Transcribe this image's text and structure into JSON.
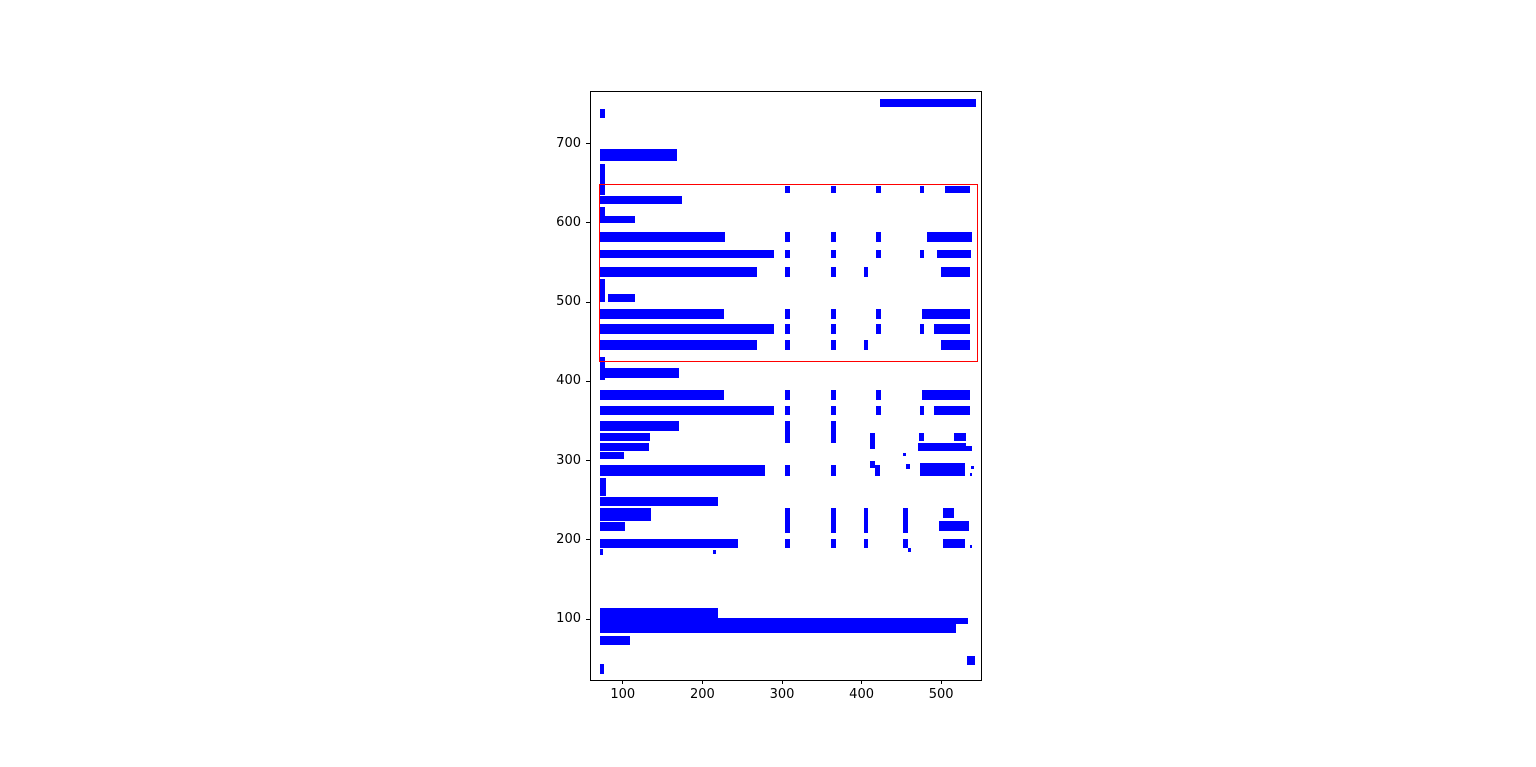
{
  "figure": {
    "background_color": "#ffffff",
    "spine_color": "#000000",
    "tick_color": "#000000"
  },
  "chart_data": {
    "type": "rectangles",
    "title": "",
    "xlabel": "",
    "ylabel": "",
    "grid": false,
    "legend": null,
    "xlim": [
      60,
      550
    ],
    "ylim": [
      23,
      765
    ],
    "x_ticks": [
      100,
      200,
      300,
      400,
      500
    ],
    "y_ticks": [
      100,
      200,
      300,
      400,
      500,
      600,
      700
    ],
    "x_tick_labels": [
      "100",
      "200",
      "300",
      "400",
      "500"
    ],
    "y_tick_labels": [
      "100",
      "200",
      "300",
      "400",
      "500",
      "600",
      "700"
    ],
    "box_color": "#0000ff",
    "highlight_color": "#ff0000",
    "highlight_rect": {
      "x": 70.0,
      "y": 423.9,
      "width": 475.9,
      "height": 224.9
    },
    "boxes": [
      [
        422.5,
        745.7,
        121.3,
        10.0
      ],
      [
        71.3,
        732.7,
        6.2,
        11.3
      ],
      [
        71.3,
        678.0,
        96.2,
        15.6
      ],
      [
        71.3,
        650.8,
        6.2,
        23.9
      ],
      [
        71.3,
        635.0,
        5.7,
        17.8
      ],
      [
        304.1,
        637.0,
        6.3,
        9.3
      ],
      [
        361.6,
        637.0,
        6.3,
        9.3
      ],
      [
        417.9,
        637.0,
        6.2,
        9.3
      ],
      [
        472.9,
        637.0,
        5.5,
        9.3
      ],
      [
        504.1,
        637.0,
        32.5,
        9.3
      ],
      [
        71.3,
        623.6,
        102.8,
        10.1
      ],
      [
        71.3,
        599.3,
        5.7,
        21.0
      ],
      [
        76.6,
        599.3,
        38.4,
        9.2
      ],
      [
        71.3,
        576.1,
        157.1,
        12.6
      ],
      [
        304.1,
        576.1,
        6.3,
        12.6
      ],
      [
        361.6,
        576.1,
        6.3,
        12.6
      ],
      [
        417.9,
        576.1,
        6.2,
        12.6
      ],
      [
        481.6,
        576.1,
        57.2,
        12.6
      ],
      [
        71.3,
        555.2,
        218.7,
        10.5
      ],
      [
        304.1,
        555.2,
        6.3,
        10.5
      ],
      [
        361.6,
        555.2,
        6.3,
        10.5
      ],
      [
        417.9,
        555.2,
        6.2,
        10.5
      ],
      [
        472.9,
        555.2,
        5.5,
        10.5
      ],
      [
        495.0,
        555.2,
        42.5,
        10.5
      ],
      [
        71.3,
        531.8,
        197.8,
        12.5
      ],
      [
        304.1,
        531.8,
        6.3,
        12.5
      ],
      [
        361.6,
        531.8,
        6.3,
        12.5
      ],
      [
        402.5,
        531.8,
        5.9,
        12.5
      ],
      [
        499.1,
        531.8,
        37.5,
        12.5
      ],
      [
        71.3,
        500.2,
        5.7,
        29.4
      ],
      [
        80.9,
        500.2,
        34.1,
        10.5
      ],
      [
        71.3,
        479.2,
        156.2,
        12.6
      ],
      [
        304.1,
        479.2,
        6.3,
        12.6
      ],
      [
        361.6,
        479.2,
        6.3,
        12.6
      ],
      [
        417.9,
        479.2,
        6.2,
        12.6
      ],
      [
        476.3,
        479.2,
        59.6,
        12.6
      ],
      [
        71.3,
        460.3,
        218.7,
        12.6
      ],
      [
        304.1,
        460.3,
        6.3,
        12.6
      ],
      [
        361.6,
        460.3,
        6.3,
        12.6
      ],
      [
        417.9,
        460.3,
        6.2,
        12.6
      ],
      [
        472.9,
        460.3,
        5.5,
        12.6
      ],
      [
        490.9,
        460.3,
        45.0,
        12.6
      ],
      [
        71.3,
        439.4,
        197.8,
        12.6
      ],
      [
        304.1,
        439.4,
        6.3,
        12.6
      ],
      [
        361.6,
        439.4,
        6.3,
        12.6
      ],
      [
        402.5,
        439.4,
        5.9,
        12.6
      ],
      [
        499.1,
        439.4,
        37.5,
        12.6
      ],
      [
        71.3,
        402.0,
        5.7,
        29.0
      ],
      [
        71.3,
        404.2,
        99.6,
        12.6
      ],
      [
        71.3,
        376.9,
        156.2,
        12.6
      ],
      [
        304.1,
        376.9,
        6.3,
        12.6
      ],
      [
        361.6,
        376.9,
        6.3,
        12.6
      ],
      [
        417.9,
        376.9,
        6.2,
        12.6
      ],
      [
        476.3,
        376.9,
        59.6,
        12.6
      ],
      [
        71.3,
        356.8,
        218.7,
        11.7
      ],
      [
        304.1,
        356.8,
        6.3,
        11.7
      ],
      [
        361.6,
        356.8,
        6.3,
        11.7
      ],
      [
        417.9,
        356.8,
        6.2,
        11.7
      ],
      [
        472.9,
        356.8,
        5.5,
        11.7
      ],
      [
        490.9,
        356.8,
        45.0,
        11.7
      ],
      [
        71.3,
        337.0,
        99.6,
        12.6
      ],
      [
        304.1,
        322.5,
        6.3,
        27.1
      ],
      [
        361.6,
        322.5,
        6.3,
        27.1
      ],
      [
        410.0,
        314.0,
        6.3,
        21.0
      ],
      [
        71.3,
        324.4,
        63.3,
        10.6
      ],
      [
        472.5,
        324.4,
        6.3,
        10.6
      ],
      [
        516.3,
        324.4,
        14.6,
        10.6
      ],
      [
        71.3,
        311.8,
        61.2,
        10.6
      ],
      [
        470.4,
        311.8,
        60.5,
        10.6
      ],
      [
        530.9,
        311.8,
        8.2,
        6.5
      ],
      [
        71.3,
        301.4,
        30.0,
        9.2
      ],
      [
        410.0,
        291.0,
        6.3,
        8.3
      ],
      [
        451.6,
        305.5,
        4.4,
        4.2
      ],
      [
        456.0,
        288.8,
        5.0,
        7.0
      ],
      [
        71.3,
        280.0,
        207.1,
        14.7
      ],
      [
        304.1,
        280.0,
        6.3,
        14.7
      ],
      [
        361.6,
        280.0,
        6.3,
        14.7
      ],
      [
        416.6,
        280.0,
        6.3,
        14.7
      ],
      [
        473.0,
        280.0,
        57.6,
        17.0
      ],
      [
        537.1,
        288.8,
        4.2,
        4.1
      ],
      [
        535.9,
        280.0,
        2.9,
        4.1
      ],
      [
        71.3,
        254.8,
        7.5,
        23.0
      ],
      [
        71.3,
        242.2,
        148.7,
        11.4
      ],
      [
        71.3,
        223.3,
        63.7,
        16.8
      ],
      [
        304.1,
        208.6,
        6.3,
        31.5
      ],
      [
        361.6,
        208.6,
        6.3,
        31.5
      ],
      [
        402.5,
        208.6,
        5.9,
        31.5
      ],
      [
        452.5,
        208.6,
        6.3,
        31.5
      ],
      [
        502.5,
        227.5,
        13.4,
        12.6
      ],
      [
        497.1,
        210.7,
        37.5,
        12.6
      ],
      [
        71.3,
        210.7,
        31.2,
        11.4
      ],
      [
        71.3,
        189.0,
        172.8,
        12.1
      ],
      [
        304.1,
        189.0,
        6.3,
        12.1
      ],
      [
        361.6,
        189.0,
        6.3,
        12.1
      ],
      [
        402.5,
        189.0,
        5.9,
        12.1
      ],
      [
        452.5,
        189.0,
        6.3,
        12.1
      ],
      [
        458.8,
        185.0,
        3.7,
        4.2
      ],
      [
        502.5,
        189.0,
        27.9,
        12.1
      ],
      [
        535.9,
        189.0,
        2.9,
        4.0
      ],
      [
        71.3,
        181.4,
        3.7,
        7.6
      ],
      [
        213.8,
        181.4,
        3.3,
        5.1
      ],
      [
        71.3,
        101.3,
        148.7,
        12.5
      ],
      [
        71.3,
        93.7,
        462.8,
        7.6
      ],
      [
        71.3,
        82.0,
        446.6,
        11.7
      ],
      [
        71.3,
        67.7,
        37.5,
        11.3
      ],
      [
        532.5,
        42.5,
        10.4,
        11.3
      ],
      [
        71.3,
        30.8,
        5.3,
        12.6
      ]
    ]
  }
}
